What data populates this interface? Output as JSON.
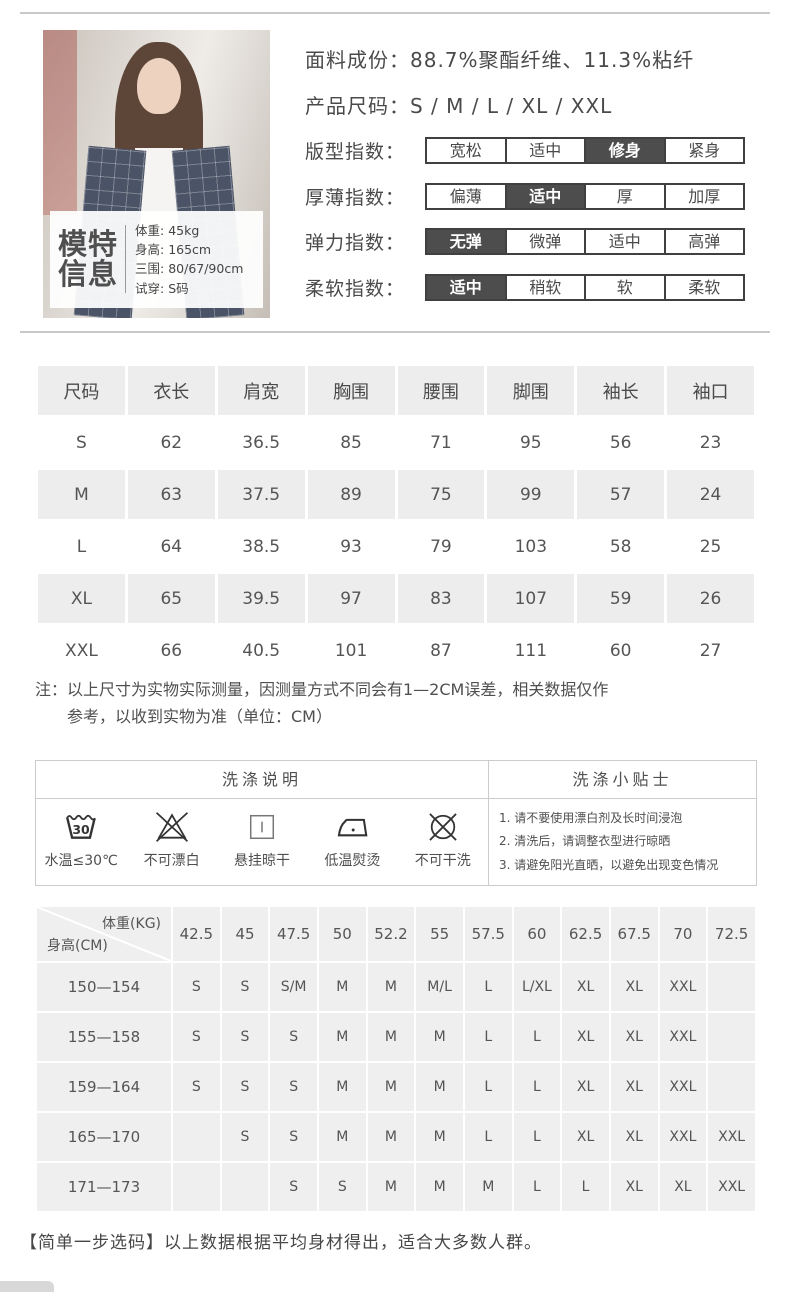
{
  "colors": {
    "accent_dark": "#4d4d4d",
    "bar_border": "#404040",
    "row_gray": "#ededed",
    "chart_gray": "#efefef",
    "divider": "#c9c9c9"
  },
  "model": {
    "title_line1": "模特",
    "title_line2": "信息",
    "stats": [
      "体重: 45kg",
      "身高: 165cm",
      "三围: 80/67/90cm",
      "试穿: S码"
    ]
  },
  "top": {
    "fabric_label": "面料成份：",
    "fabric_value": "88.7%聚酯纤维、11.3%粘纤",
    "sizes_label": "产品尺码：",
    "sizes_value": "S / M / L / XL / XXL",
    "indices": [
      {
        "label": "版型指数：",
        "options": [
          "宽松",
          "适中",
          "修身",
          "紧身"
        ],
        "selected": 2
      },
      {
        "label": "厚薄指数：",
        "options": [
          "偏薄",
          "适中",
          "厚",
          "加厚"
        ],
        "selected": 1
      },
      {
        "label": "弹力指数：",
        "options": [
          "无弹",
          "微弹",
          "适中",
          "高弹"
        ],
        "selected": 0
      },
      {
        "label": "柔软指数：",
        "options": [
          "适中",
          "稍软",
          "软",
          "柔软"
        ],
        "selected": 0
      }
    ]
  },
  "size_table": {
    "headers": [
      "尺码",
      "衣长",
      "肩宽",
      "胸围",
      "腰围",
      "脚围",
      "袖长",
      "袖口"
    ],
    "rows": [
      [
        "S",
        "62",
        "36.5",
        "85",
        "71",
        "95",
        "56",
        "23"
      ],
      [
        "M",
        "63",
        "37.5",
        "89",
        "75",
        "99",
        "57",
        "24"
      ],
      [
        "L",
        "64",
        "38.5",
        "93",
        "79",
        "103",
        "58",
        "25"
      ],
      [
        "XL",
        "65",
        "39.5",
        "97",
        "83",
        "107",
        "59",
        "26"
      ],
      [
        "XXL",
        "66",
        "40.5",
        "101",
        "87",
        "111",
        "60",
        "27"
      ]
    ]
  },
  "note": {
    "line1": "注：以上尺寸为实物实际测量，因测量方式不同会有1—2CM误差，相关数据仅作",
    "line2": "参考，以收到实物为准（单位：CM）"
  },
  "washing": {
    "left_title": "洗涤说明",
    "right_title": "洗涤小贴士",
    "icons": [
      {
        "name": "wash-30-icon",
        "glyph_text": "30",
        "caption": "水温≤30℃"
      },
      {
        "name": "no-bleach-icon",
        "caption": "不可漂白"
      },
      {
        "name": "hang-dry-icon",
        "caption": "悬挂晾干"
      },
      {
        "name": "low-iron-icon",
        "caption": "低温熨烫"
      },
      {
        "name": "no-dryclean-icon",
        "caption": "不可干洗"
      }
    ],
    "tips": [
      "1. 请不要使用漂白剂及长时间浸泡",
      "2. 清洗后，请调整衣型进行晾晒",
      "3. 请避免阳光直晒，以避免出现变色情况"
    ]
  },
  "size_chart": {
    "corner_top": "体重(KG)",
    "corner_bottom": "身高(CM)",
    "weights": [
      "42.5",
      "45",
      "47.5",
      "50",
      "52.2",
      "55",
      "57.5",
      "60",
      "62.5",
      "67.5",
      "70",
      "72.5"
    ],
    "rows": [
      {
        "height": "150—154",
        "cells": [
          "S",
          "S",
          "S/M",
          "M",
          "M",
          "M/L",
          "L",
          "L/XL",
          "XL",
          "XL",
          "XXL",
          ""
        ]
      },
      {
        "height": "155—158",
        "cells": [
          "S",
          "S",
          "S",
          "M",
          "M",
          "M",
          "L",
          "L",
          "XL",
          "XL",
          "XXL",
          ""
        ]
      },
      {
        "height": "159—164",
        "cells": [
          "S",
          "S",
          "S",
          "M",
          "M",
          "M",
          "L",
          "L",
          "XL",
          "XL",
          "XXL",
          ""
        ]
      },
      {
        "height": "165—170",
        "cells": [
          "",
          "S",
          "S",
          "M",
          "M",
          "M",
          "L",
          "L",
          "XL",
          "XL",
          "XXL",
          "XXL"
        ]
      },
      {
        "height": "171—173",
        "cells": [
          "",
          "",
          "S",
          "S",
          "M",
          "M",
          "M",
          "L",
          "L",
          "XL",
          "XL",
          "XXL"
        ]
      }
    ]
  },
  "footer_note": "【简单一步选码】以上数据根据平均身材得出，适合大多数人群。"
}
